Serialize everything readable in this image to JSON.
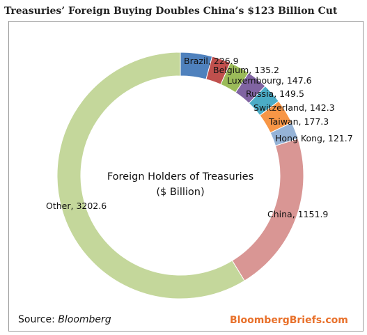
{
  "chart_data": {
    "type": "pie",
    "title": "Treasuries’ Foreign Buying Doubles China’s $123 Billion Cut",
    "center_label_line1": "Foreign Holders of Treasuries",
    "center_label_line2": "($ Billion)",
    "slices": [
      {
        "label": "Brazil",
        "value": 226.9,
        "color": "#4f81bd",
        "text": "Brazil, 226.9"
      },
      {
        "label": "Belgium",
        "value": 135.2,
        "color": "#c0504d",
        "text": "Belgium, 135.2"
      },
      {
        "label": "Luxembourg",
        "value": 147.6,
        "color": "#9bbb59",
        "text": "Luxembourg, 147.6"
      },
      {
        "label": "Russia",
        "value": 149.5,
        "color": "#8064a2",
        "text": "Russia, 149.5"
      },
      {
        "label": "Switzerland",
        "value": 142.3,
        "color": "#4bacc6",
        "text": "Switzerland, 142.3"
      },
      {
        "label": "Taiwan",
        "value": 177.3,
        "color": "#f79646",
        "text": "Taiwan, 177.3"
      },
      {
        "label": "Hong Kong",
        "value": 121.7,
        "color": "#95b3d7",
        "text": "Hong Kong, 121.7"
      },
      {
        "label": "China",
        "value": 1151.9,
        "color": "#d99694",
        "text": "China, 1151.9"
      },
      {
        "label": "Other",
        "value": 3202.6,
        "color": "#c4d79b",
        "text": "Other, 3202.6"
      }
    ]
  },
  "footer": {
    "source_prefix": "Source: ",
    "source_name": "Bloomberg",
    "brand": "BloombergBriefs.com"
  }
}
